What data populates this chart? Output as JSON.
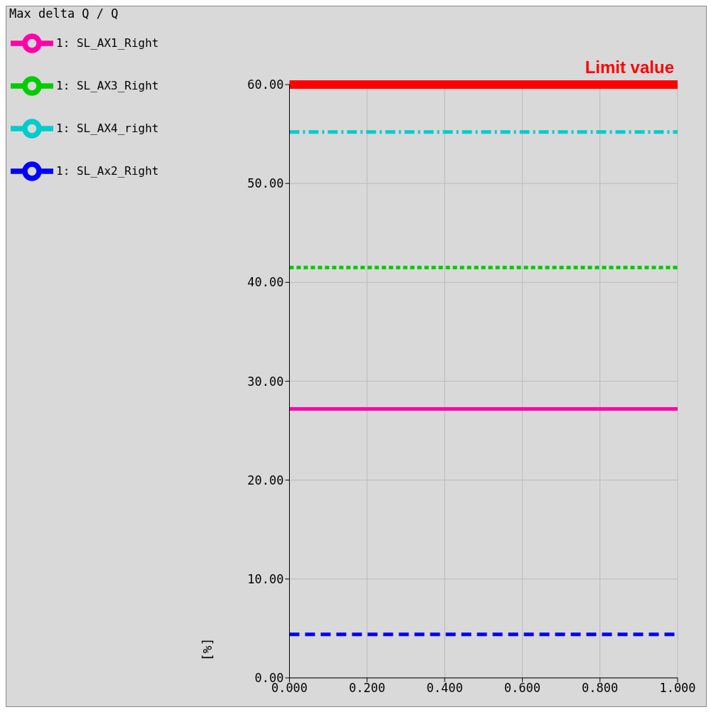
{
  "chart_data": {
    "type": "line",
    "title": "Max delta Q / Q",
    "ylabel": "[%]",
    "x": [
      0,
      1
    ],
    "series": [
      {
        "name": "1: SL_AX1_Right",
        "color": "#ff00aa",
        "values": [
          27.2,
          27.2
        ],
        "line_style": "solid"
      },
      {
        "name": "1: SL_Ax2_Right",
        "color": "#0000ff",
        "values": [
          4.4,
          4.4
        ],
        "line_style": "dashed"
      },
      {
        "name": "1: SL_AX3_Right",
        "color": "#00cc00",
        "values": [
          41.5,
          41.5
        ],
        "line_style": "dotted"
      },
      {
        "name": "1: SL_AX4_right",
        "color": "#00cccc",
        "values": [
          55.2,
          55.2
        ],
        "line_style": "dashdot"
      }
    ],
    "xlim": [
      0,
      1
    ],
    "xticks": [
      {
        "value": 0,
        "label": "0.000"
      },
      {
        "value": 0.2,
        "label": "0.200"
      },
      {
        "value": 0.4,
        "label": "0.400"
      },
      {
        "value": 0.6,
        "label": "0.600"
      },
      {
        "value": 0.8,
        "label": "0.800"
      },
      {
        "value": 1,
        "label": "1.000"
      }
    ],
    "ylim": [
      0,
      60
    ],
    "yticks": [
      {
        "value": 0,
        "label": "0.00"
      },
      {
        "value": 10,
        "label": "10.00"
      },
      {
        "value": 20,
        "label": "20.00"
      },
      {
        "value": 30,
        "label": "30.00"
      },
      {
        "value": 40,
        "label": "40.00"
      },
      {
        "value": 50,
        "label": "50.00"
      },
      {
        "value": 60,
        "label": "60.00"
      }
    ],
    "ref_lines": [
      {
        "axis": "y",
        "value": 60,
        "label": "Limit value",
        "color": "#ff0000"
      }
    ],
    "grid": true,
    "legend": "top left",
    "marker": "none"
  }
}
